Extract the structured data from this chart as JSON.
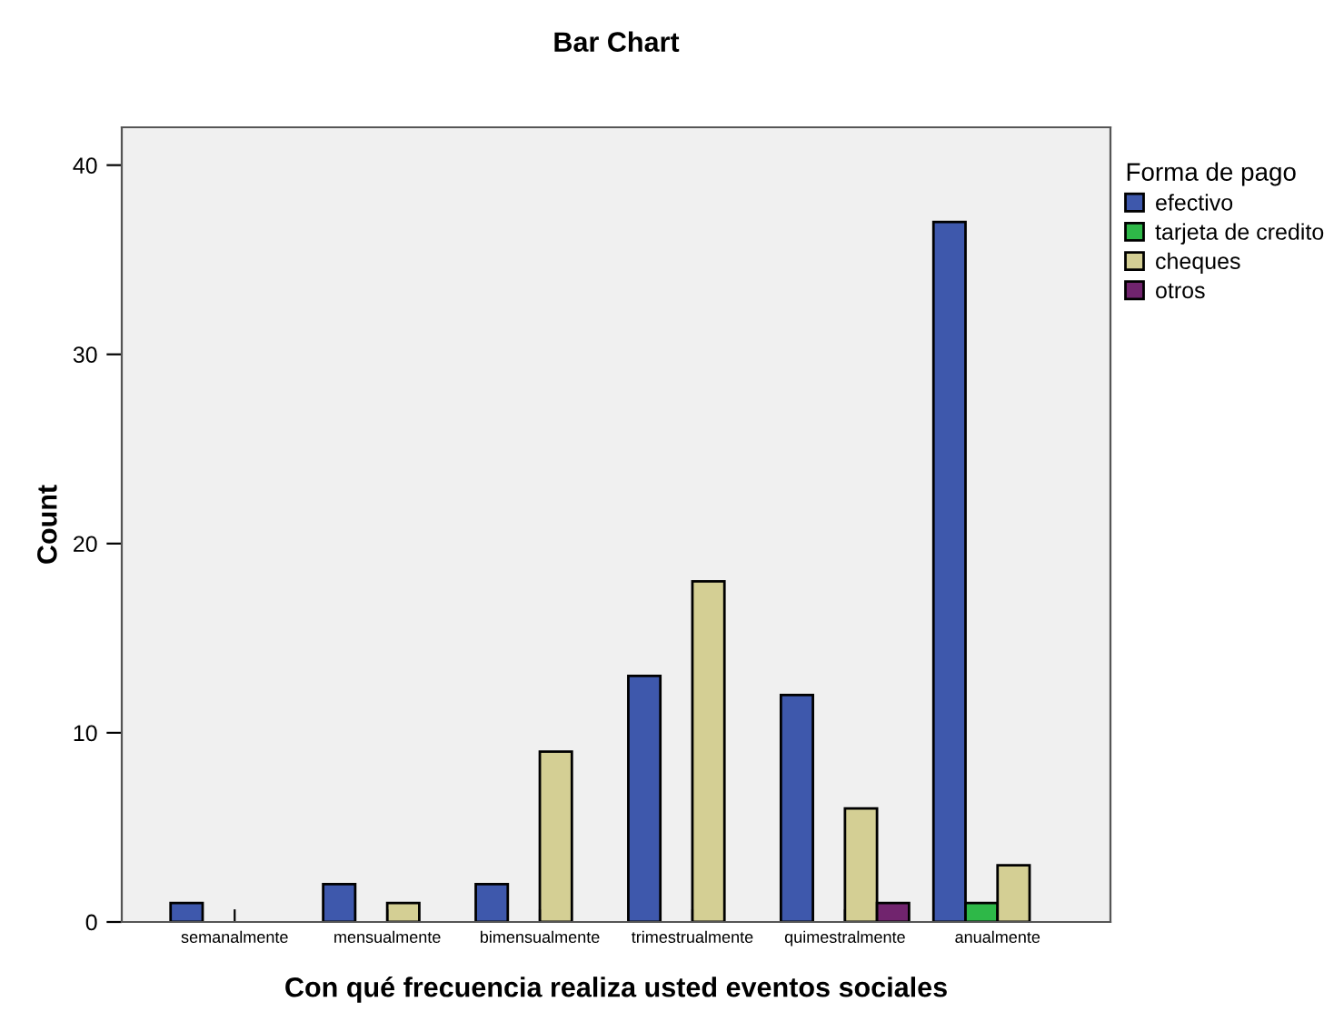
{
  "chart_data": {
    "type": "bar",
    "title": "Bar Chart",
    "xlabel": "Con qué frecuencia realiza usted eventos sociales",
    "ylabel": "Count",
    "legend_title": "Forma de pago",
    "categories": [
      "semanalmente",
      "mensualmente",
      "bimensualmente",
      "trimestrualmente",
      "quimestralmente",
      "anualmente"
    ],
    "series": [
      {
        "name": "efectivo",
        "color": "#3e58ac",
        "values": [
          1,
          2,
          2,
          13,
          12,
          37
        ]
      },
      {
        "name": "tarjeta de credito",
        "color": "#2eb848",
        "values": [
          null,
          null,
          null,
          null,
          null,
          1
        ]
      },
      {
        "name": "cheques",
        "color": "#d4cf94",
        "values": [
          null,
          1,
          9,
          18,
          6,
          3
        ]
      },
      {
        "name": "otros",
        "color": "#71246e",
        "values": [
          null,
          null,
          null,
          null,
          1,
          null
        ]
      }
    ],
    "ylim": [
      0,
      42
    ],
    "yticks": [
      0,
      10,
      20,
      30,
      40
    ],
    "grid": false,
    "legend": "right"
  }
}
